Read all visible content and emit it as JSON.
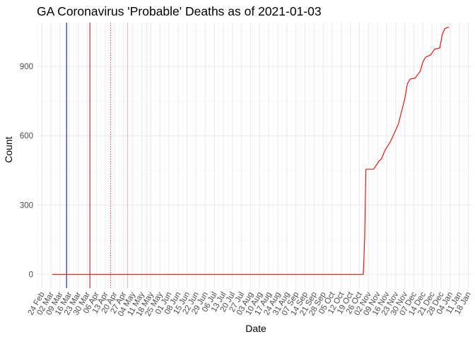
{
  "chart_data": {
    "type": "line",
    "title": "GA Coronavirus 'Probable' Deaths as of 2021-01-03",
    "xlabel": "Date",
    "ylabel": "Count",
    "x_type": "date",
    "xlim": [
      "2020-02-20",
      "2021-01-21"
    ],
    "ylim": [
      -60,
      1090
    ],
    "grid": true,
    "legend": "none",
    "x_ticks": [
      {
        "date": "2020-02-24",
        "label": "24 Feb"
      },
      {
        "date": "2020-03-02",
        "label": "02 Mar"
      },
      {
        "date": "2020-03-09",
        "label": "09 Mar"
      },
      {
        "date": "2020-03-16",
        "label": "16 Mar"
      },
      {
        "date": "2020-03-23",
        "label": "23 Mar"
      },
      {
        "date": "2020-03-30",
        "label": "30 Mar"
      },
      {
        "date": "2020-04-06",
        "label": "06 Apr"
      },
      {
        "date": "2020-04-13",
        "label": "13 Apr"
      },
      {
        "date": "2020-04-20",
        "label": "20 Apr"
      },
      {
        "date": "2020-04-27",
        "label": "27 Apr"
      },
      {
        "date": "2020-05-04",
        "label": "04 May"
      },
      {
        "date": "2020-05-11",
        "label": "11 May"
      },
      {
        "date": "2020-05-18",
        "label": "18 May"
      },
      {
        "date": "2020-05-25",
        "label": "25 May"
      },
      {
        "date": "2020-06-01",
        "label": "01 Jun"
      },
      {
        "date": "2020-06-08",
        "label": "08 Jun"
      },
      {
        "date": "2020-06-15",
        "label": "15 Jun"
      },
      {
        "date": "2020-06-22",
        "label": "22 Jun"
      },
      {
        "date": "2020-06-29",
        "label": "29 Jun"
      },
      {
        "date": "2020-07-06",
        "label": "06 Jul"
      },
      {
        "date": "2020-07-13",
        "label": "13 Jul"
      },
      {
        "date": "2020-07-20",
        "label": "20 Jul"
      },
      {
        "date": "2020-07-27",
        "label": "27 Jul"
      },
      {
        "date": "2020-08-03",
        "label": "03 Aug"
      },
      {
        "date": "2020-08-10",
        "label": "10 Aug"
      },
      {
        "date": "2020-08-17",
        "label": "17 Aug"
      },
      {
        "date": "2020-08-24",
        "label": "24 Aug"
      },
      {
        "date": "2020-08-31",
        "label": "31 Aug"
      },
      {
        "date": "2020-09-07",
        "label": "07 Sep"
      },
      {
        "date": "2020-09-14",
        "label": "14 Sep"
      },
      {
        "date": "2020-09-21",
        "label": "21 Sep"
      },
      {
        "date": "2020-09-28",
        "label": "28 Sep"
      },
      {
        "date": "2020-10-05",
        "label": "05 Oct"
      },
      {
        "date": "2020-10-12",
        "label": "12 Oct"
      },
      {
        "date": "2020-10-19",
        "label": "19 Oct"
      },
      {
        "date": "2020-10-26",
        "label": "26 Oct"
      },
      {
        "date": "2020-11-02",
        "label": "02 Nov"
      },
      {
        "date": "2020-11-09",
        "label": "09 Nov"
      },
      {
        "date": "2020-11-16",
        "label": "16 Nov"
      },
      {
        "date": "2020-11-23",
        "label": "23 Nov"
      },
      {
        "date": "2020-11-30",
        "label": "30 Nov"
      },
      {
        "date": "2020-12-07",
        "label": "07 Dec"
      },
      {
        "date": "2020-12-14",
        "label": "14 Dec"
      },
      {
        "date": "2020-12-21",
        "label": "21 Dec"
      },
      {
        "date": "2020-12-28",
        "label": "28 Dec"
      },
      {
        "date": "2021-01-04",
        "label": "04 Jan"
      },
      {
        "date": "2021-01-11",
        "label": "11 Jan"
      },
      {
        "date": "2021-01-18",
        "label": "18 Jan"
      }
    ],
    "y_ticks": [
      0,
      300,
      600,
      900
    ],
    "series": [
      {
        "color": "#ff0000",
        "points": [
          {
            "x": "2020-03-03",
            "y": 0
          },
          {
            "x": "2020-10-29",
            "y": 0
          },
          {
            "x": "2020-10-30",
            "y": 150
          },
          {
            "x": "2020-10-31",
            "y": 455
          },
          {
            "x": "2020-11-06",
            "y": 455
          },
          {
            "x": "2020-11-10",
            "y": 490
          },
          {
            "x": "2020-11-12",
            "y": 500
          },
          {
            "x": "2020-11-15",
            "y": 540
          },
          {
            "x": "2020-11-19",
            "y": 575
          },
          {
            "x": "2020-11-25",
            "y": 650
          },
          {
            "x": "2020-11-30",
            "y": 760
          },
          {
            "x": "2020-12-02",
            "y": 825
          },
          {
            "x": "2020-12-04",
            "y": 845
          },
          {
            "x": "2020-12-08",
            "y": 850
          },
          {
            "x": "2020-12-12",
            "y": 880
          },
          {
            "x": "2020-12-14",
            "y": 920
          },
          {
            "x": "2020-12-16",
            "y": 940
          },
          {
            "x": "2020-12-20",
            "y": 950
          },
          {
            "x": "2020-12-23",
            "y": 975
          },
          {
            "x": "2020-12-27",
            "y": 980
          },
          {
            "x": "2020-12-29",
            "y": 1040
          },
          {
            "x": "2020-12-31",
            "y": 1065
          },
          {
            "x": "2021-01-03",
            "y": 1070
          }
        ]
      }
    ],
    "reference_lines": [
      {
        "x": "2020-03-14",
        "color": "#00008b",
        "style": "solid"
      },
      {
        "x": "2020-04-01",
        "color": "#cd0000",
        "style": "solid"
      },
      {
        "x": "2020-04-17",
        "color": "#e05050",
        "style": "dotted"
      },
      {
        "x": "2020-04-30",
        "color": "#f4b0b0",
        "style": "solid"
      },
      {
        "x": "2020-05-15",
        "color": "#f4c4c4",
        "style": "dotted"
      }
    ],
    "colors": {
      "background": "#ffffff",
      "grid_major": "#ebebeb",
      "grid_minor": "#f5f5f5",
      "tick_text": "#4d4d4d"
    }
  }
}
